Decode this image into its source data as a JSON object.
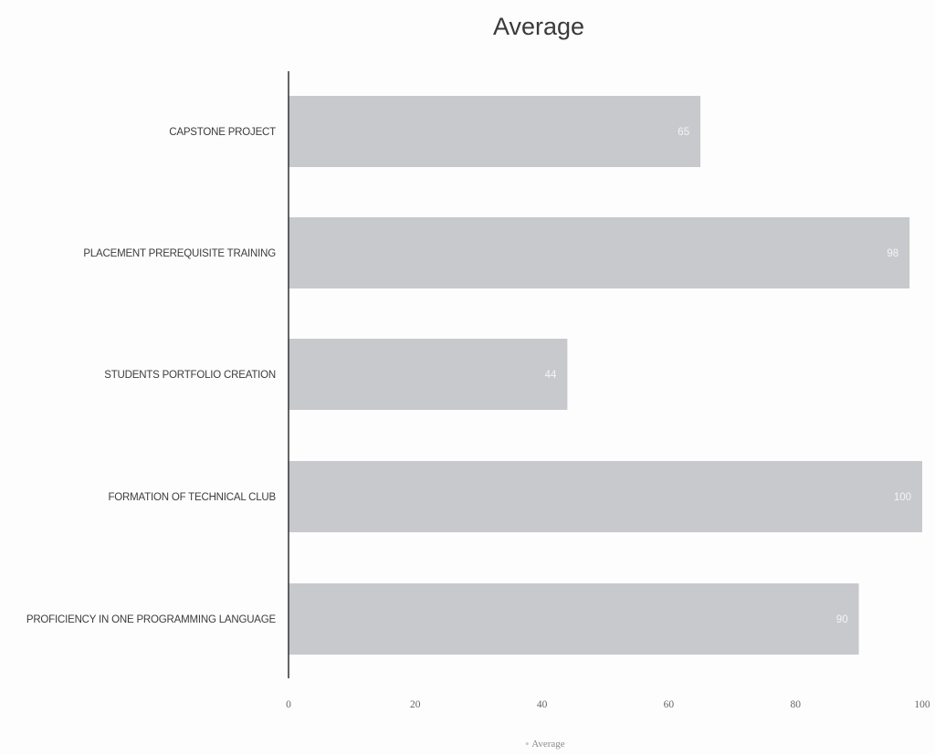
{
  "chart_data": {
    "type": "bar",
    "orientation": "horizontal",
    "title": "Average",
    "categories": [
      "CAPSTONE PROJECT",
      "PLACEMENT PREREQUISITE TRAINING",
      "STUDENTS PORTFOLIO CREATION",
      "FORMATION OF TECHNICAL CLUB",
      "PROFICIENCY IN ONE PROGRAMMING LANGUAGE"
    ],
    "series": [
      {
        "name": "Average",
        "values": [
          65,
          98,
          44,
          100,
          90
        ],
        "color": "#c8c9cd"
      }
    ],
    "xlim": [
      0,
      100
    ],
    "x_ticks": [
      0,
      20,
      40,
      60,
      80,
      100
    ],
    "x_tick_labels": [
      "0",
      "20",
      "40",
      "60",
      "80",
      "100"
    ],
    "data_labels": true,
    "grid": false,
    "legend": {
      "position": "bottom",
      "marker": "▪"
    },
    "colors": {
      "bar": "#c8c9cd",
      "axis": "#333333",
      "background": "#fdfdfd"
    }
  }
}
